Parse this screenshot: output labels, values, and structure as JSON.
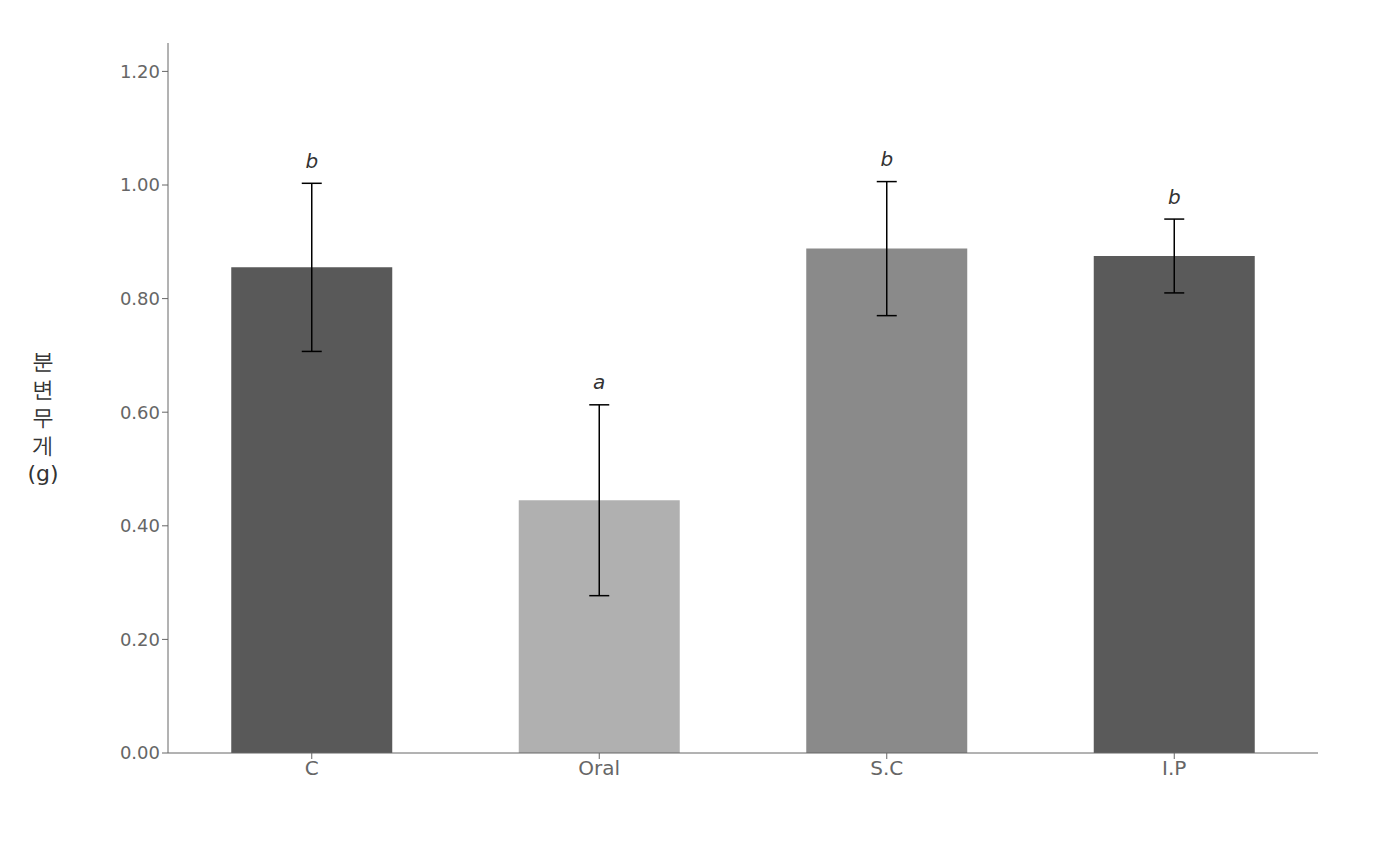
{
  "chart_data": {
    "type": "bar",
    "categories": [
      "C",
      "Oral",
      "S.C",
      "I.P"
    ],
    "values": [
      0.855,
      0.445,
      0.888,
      0.875
    ],
    "errors": [
      0.148,
      0.168,
      0.118,
      0.065
    ],
    "colors": [
      "#595959",
      "#b0b0b0",
      "#8a8a8a",
      "#5a5a5a"
    ],
    "annotations": [
      "b",
      "a",
      "b",
      "b"
    ],
    "ylabel": "분\n변\n무\n게\n(g)",
    "ylim": [
      0.0,
      1.25
    ],
    "yticks": [
      {
        "value": 0.0,
        "label": "0.00"
      },
      {
        "value": 0.2,
        "label": "0.20"
      },
      {
        "value": 0.4,
        "label": "0.40"
      },
      {
        "value": 0.6,
        "label": "0.60"
      },
      {
        "value": 0.8,
        "label": "0.80"
      },
      {
        "value": 1.0,
        "label": "1.00"
      },
      {
        "value": 1.2,
        "label": "1.20"
      }
    ],
    "grid": false
  }
}
